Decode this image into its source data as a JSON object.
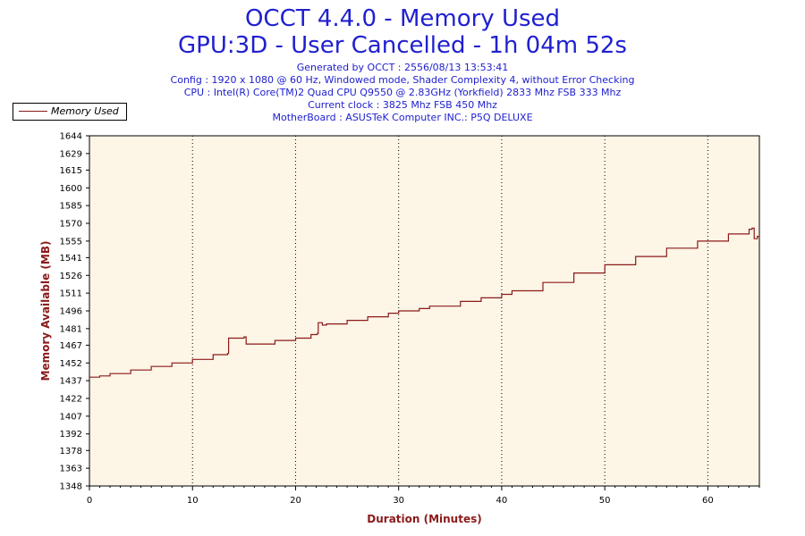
{
  "header": {
    "title": "OCCT 4.4.0 - Memory Used",
    "subtitle": "GPU:3D - User Cancelled - 1h 04m 52s",
    "info_lines": [
      "Generated by OCCT : 2556/08/13 13:53:41",
      "Config : 1920 x 1080 @ 60 Hz, Windowed mode, Shader Complexity 4, without Error Checking",
      "CPU : Intel(R) Core(TM)2 Quad CPU Q9550 @ 2.83GHz (Yorkfield) 2833 Mhz FSB 333 Mhz",
      "Current clock : 3825 Mhz FSB 450 Mhz",
      "MotherBoard : ASUSTeK Computer INC.: P5Q DELUXE"
    ]
  },
  "legend": {
    "label": "Memory Used"
  },
  "colors": {
    "title": "#2020d0",
    "axis_label": "#8b1a1a",
    "line": "#8b1a1a",
    "plot_bg": "#fdf5e6"
  },
  "chart_data": {
    "type": "line",
    "title": "OCCT 4.4.0 - Memory Used",
    "xlabel": "Duration (Minutes)",
    "ylabel": "Memory Available (MB)",
    "xlim": [
      0,
      65
    ],
    "ylim": [
      1348,
      1644
    ],
    "x_ticks": [
      0,
      10,
      20,
      30,
      40,
      50,
      60
    ],
    "y_ticks": [
      1348,
      1363,
      1378,
      1392,
      1407,
      1422,
      1437,
      1452,
      1467,
      1481,
      1496,
      1511,
      1526,
      1541,
      1555,
      1570,
      1585,
      1600,
      1615,
      1629,
      1644
    ],
    "grid": "vertical dotted",
    "legend_position": "top-left",
    "series": [
      {
        "name": "Memory Used",
        "x": [
          0,
          1,
          2,
          4,
          6,
          8,
          10,
          12,
          13.4,
          13.5,
          15,
          15.2,
          16,
          18,
          20,
          21.5,
          22.1,
          22.2,
          22.6,
          23,
          25,
          27,
          29,
          30,
          32,
          33,
          34,
          36,
          38,
          40,
          41,
          44,
          47,
          50,
          53,
          56,
          59,
          62,
          64,
          64.3,
          64.5,
          64.8,
          65
        ],
        "values": [
          1440,
          1441,
          1443,
          1446,
          1449,
          1452,
          1455,
          1459,
          1460,
          1473,
          1474,
          1468,
          1468,
          1471,
          1473,
          1476,
          1477,
          1486,
          1484,
          1485,
          1488,
          1491,
          1494,
          1496,
          1498,
          1500,
          1500,
          1504,
          1507,
          1510,
          1513,
          1520,
          1528,
          1535,
          1542,
          1549,
          1555,
          1561,
          1565,
          1566,
          1557,
          1559,
          1560
        ]
      }
    ]
  }
}
